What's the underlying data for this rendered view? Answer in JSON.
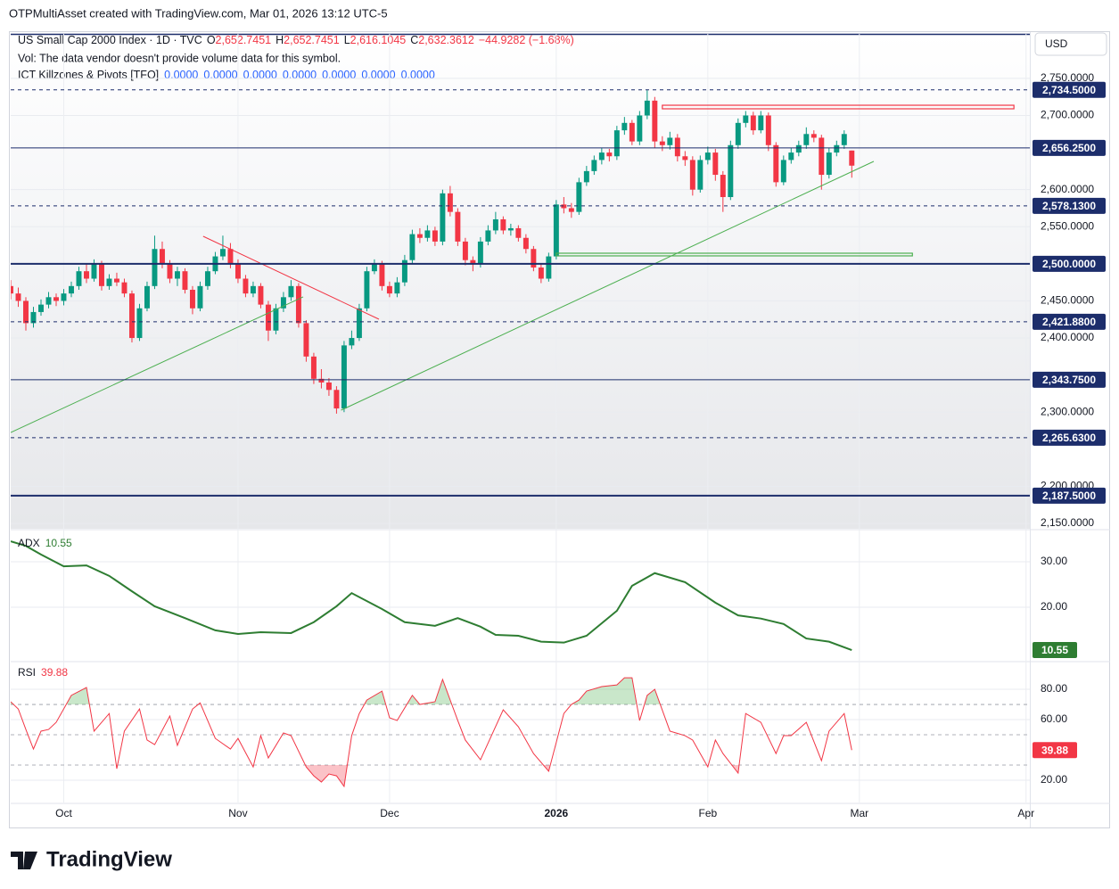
{
  "header": {
    "title": "OTPMultiAsset created with TradingView.com, Mar 01, 2026 13:12 UTC-5"
  },
  "footer": {
    "brand": "TradingView"
  },
  "chart_data": [
    {
      "type": "candlestick",
      "symbol": "US Small Cap 2000 Index · 1D · TVC",
      "ohlc_legend": [
        {
          "key": "O",
          "value": "2,652.7451"
        },
        {
          "key": "H",
          "value": "2,652.7451"
        },
        {
          "key": "L",
          "value": "2,616.1045"
        },
        {
          "key": "C",
          "value": "2,632.3612"
        }
      ],
      "change": "−44.9282 (−1.68%)",
      "notes": [
        "Vol: The data vendor doesn't provide volume data for this symbol.",
        "ICT Killzones & Pivots [TFO]"
      ],
      "indicator_values": [
        "0.0000",
        "0.0000",
        "0.0000",
        "0.0000",
        "0.0000",
        "0.0000",
        "0.0000"
      ],
      "currency": "USD",
      "up_color": "#089981",
      "down_color": "#f23645",
      "level_color": "#1c2d6b",
      "xlim": [
        0,
        134.5
      ],
      "xticks": [
        {
          "value": 7,
          "label": "Oct"
        },
        {
          "value": 30,
          "label": "Nov"
        },
        {
          "value": 50,
          "label": "Dec"
        },
        {
          "value": 72,
          "label": "2026"
        },
        {
          "value": 92,
          "label": "Feb"
        },
        {
          "value": 112,
          "label": "Mar"
        },
        {
          "value": 134,
          "label": "Apr"
        }
      ],
      "ylim": [
        2142.8,
        2810
      ],
      "yticks": [
        {
          "value": 2150,
          "label": "2,150.0000"
        },
        {
          "value": 2200,
          "label": "2,200.0000"
        },
        {
          "value": 2300,
          "label": "2,300.0000"
        },
        {
          "value": 2400,
          "label": "2,400.0000"
        },
        {
          "value": 2450,
          "label": "2,450.0000"
        },
        {
          "value": 2550,
          "label": "2,550.0000"
        },
        {
          "value": 2600,
          "label": "2,600.0000"
        },
        {
          "value": 2700,
          "label": "2,700.0000"
        },
        {
          "value": 2750,
          "label": "2,750.0000"
        }
      ],
      "grid": true,
      "levels": [
        {
          "value": 2734.5,
          "label": "2,734.5000",
          "style": "dashed"
        },
        {
          "value": 2656.25,
          "label": "2,656.2500",
          "style": "solid"
        },
        {
          "value": 2578.13,
          "label": "2,578.1300",
          "style": "dashed"
        },
        {
          "value": 2500,
          "label": "2,500.0000",
          "style": "bold"
        },
        {
          "value": 2421.88,
          "label": "2,421.8800",
          "style": "dashed"
        },
        {
          "value": 2343.75,
          "label": "2,343.7500",
          "style": "solid"
        },
        {
          "value": 2265.63,
          "label": "2,265.6300",
          "style": "dashed"
        },
        {
          "value": 2187.5,
          "label": "2,187.5000",
          "style": "bold"
        }
      ],
      "trend_lines": [
        {
          "color": "#4caf50",
          "x": [
            0,
            38.6
          ],
          "y": [
            2272.6,
            2455.4
          ]
        },
        {
          "color": "#4caf50",
          "x": [
            43.6,
            113.9
          ],
          "y": [
            2302.7,
            2638.1
          ]
        },
        {
          "color": "#f23645",
          "x": [
            25.4,
            48.6
          ],
          "y": [
            2537.1,
            2425.3
          ]
        }
      ],
      "zones": [
        {
          "color": "#f23645",
          "x": [
            86,
            132.4
          ],
          "y": [
            2709,
            2713.8
          ]
        },
        {
          "color": "#4caf50",
          "x": [
            72,
            119
          ],
          "y": [
            2510.7,
            2514.3
          ]
        }
      ],
      "ohlc": [
        [
          2470,
          2478,
          2452,
          2460
        ],
        [
          2460,
          2468,
          2442,
          2450
        ],
        [
          2450,
          2455,
          2410,
          2420
        ],
        [
          2420,
          2442,
          2414,
          2435
        ],
        [
          2435,
          2452,
          2430,
          2445
        ],
        [
          2445,
          2462,
          2440,
          2455
        ],
        [
          2455,
          2460,
          2443,
          2450
        ],
        [
          2450,
          2466,
          2444,
          2460
        ],
        [
          2460,
          2476,
          2455,
          2470
        ],
        [
          2470,
          2496,
          2465,
          2490
        ],
        [
          2490,
          2500,
          2474,
          2480
        ],
        [
          2480,
          2506,
          2476,
          2500
        ],
        [
          2500,
          2504,
          2464,
          2470
        ],
        [
          2470,
          2486,
          2465,
          2480
        ],
        [
          2480,
          2488,
          2470,
          2475
        ],
        [
          2475,
          2480,
          2455,
          2460
        ],
        [
          2460,
          2464,
          2394,
          2400
        ],
        [
          2400,
          2446,
          2396,
          2440
        ],
        [
          2440,
          2476,
          2436,
          2470
        ],
        [
          2470,
          2538,
          2466,
          2520
        ],
        [
          2520,
          2530,
          2494,
          2500
        ],
        [
          2500,
          2505,
          2474,
          2480
        ],
        [
          2480,
          2496,
          2470,
          2490
        ],
        [
          2490,
          2494,
          2460,
          2465
        ],
        [
          2465,
          2470,
          2432,
          2440
        ],
        [
          2440,
          2476,
          2436,
          2470
        ],
        [
          2470,
          2496,
          2465,
          2490
        ],
        [
          2490,
          2516,
          2486,
          2510
        ],
        [
          2510,
          2538,
          2505,
          2520
        ],
        [
          2520,
          2528,
          2494,
          2500
        ],
        [
          2500,
          2506,
          2474,
          2480
        ],
        [
          2480,
          2485,
          2455,
          2460
        ],
        [
          2460,
          2476,
          2455,
          2470
        ],
        [
          2470,
          2474,
          2440,
          2445
        ],
        [
          2445,
          2450,
          2396,
          2410
        ],
        [
          2410,
          2446,
          2405,
          2440
        ],
        [
          2440,
          2462,
          2435,
          2455
        ],
        [
          2455,
          2478,
          2450,
          2470
        ],
        [
          2470,
          2474,
          2414,
          2420
        ],
        [
          2420,
          2424,
          2368,
          2375
        ],
        [
          2375,
          2380,
          2338,
          2345
        ],
        [
          2345,
          2358,
          2332,
          2340
        ],
        [
          2340,
          2346,
          2322,
          2330
        ],
        [
          2330,
          2335,
          2298,
          2305
        ],
        [
          2305,
          2396,
          2300,
          2390
        ],
        [
          2390,
          2410,
          2385,
          2400
        ],
        [
          2400,
          2446,
          2396,
          2440
        ],
        [
          2440,
          2496,
          2436,
          2490
        ],
        [
          2490,
          2506,
          2486,
          2500
        ],
        [
          2500,
          2504,
          2464,
          2470
        ],
        [
          2470,
          2476,
          2455,
          2460
        ],
        [
          2460,
          2482,
          2455,
          2475
        ],
        [
          2475,
          2512,
          2470,
          2505
        ],
        [
          2505,
          2546,
          2500,
          2540
        ],
        [
          2540,
          2548,
          2528,
          2535
        ],
        [
          2535,
          2552,
          2530,
          2545
        ],
        [
          2545,
          2550,
          2524,
          2530
        ],
        [
          2530,
          2600,
          2525,
          2595
        ],
        [
          2595,
          2605,
          2564,
          2570
        ],
        [
          2570,
          2575,
          2524,
          2530
        ],
        [
          2530,
          2535,
          2498,
          2505
        ],
        [
          2505,
          2510,
          2490,
          2500
        ],
        [
          2500,
          2536,
          2495,
          2530
        ],
        [
          2530,
          2552,
          2525,
          2545
        ],
        [
          2545,
          2570,
          2540,
          2560
        ],
        [
          2560,
          2564,
          2540,
          2545
        ],
        [
          2545,
          2554,
          2538,
          2548
        ],
        [
          2548,
          2552,
          2530,
          2535
        ],
        [
          2535,
          2540,
          2514,
          2520
        ],
        [
          2520,
          2524,
          2490,
          2495
        ],
        [
          2495,
          2500,
          2474,
          2480
        ],
        [
          2480,
          2515,
          2476,
          2510
        ],
        [
          2510,
          2586,
          2506,
          2580
        ],
        [
          2580,
          2590,
          2568,
          2575
        ],
        [
          2575,
          2582,
          2562,
          2570
        ],
        [
          2570,
          2616,
          2566,
          2610
        ],
        [
          2610,
          2632,
          2605,
          2625
        ],
        [
          2625,
          2646,
          2620,
          2640
        ],
        [
          2640,
          2656,
          2634,
          2650
        ],
        [
          2650,
          2655,
          2638,
          2645
        ],
        [
          2645,
          2686,
          2640,
          2680
        ],
        [
          2680,
          2698,
          2674,
          2690
        ],
        [
          2690,
          2694,
          2660,
          2665
        ],
        [
          2665,
          2706,
          2660,
          2700
        ],
        [
          2700,
          2734,
          2695,
          2720
        ],
        [
          2720,
          2725,
          2656,
          2665
        ],
        [
          2665,
          2672,
          2652,
          2660
        ],
        [
          2660,
          2678,
          2654,
          2670
        ],
        [
          2670,
          2675,
          2638,
          2645
        ],
        [
          2645,
          2652,
          2632,
          2640
        ],
        [
          2640,
          2645,
          2592,
          2600
        ],
        [
          2600,
          2646,
          2596,
          2640
        ],
        [
          2640,
          2658,
          2634,
          2650
        ],
        [
          2650,
          2655,
          2612,
          2620
        ],
        [
          2620,
          2625,
          2570,
          2590
        ],
        [
          2590,
          2666,
          2586,
          2660
        ],
        [
          2660,
          2696,
          2655,
          2690
        ],
        [
          2690,
          2706,
          2684,
          2700
        ],
        [
          2700,
          2705,
          2674,
          2680
        ],
        [
          2680,
          2706,
          2676,
          2700
        ],
        [
          2700,
          2704,
          2652,
          2660
        ],
        [
          2660,
          2664,
          2604,
          2610
        ],
        [
          2610,
          2646,
          2606,
          2640
        ],
        [
          2640,
          2656,
          2635,
          2650
        ],
        [
          2650,
          2666,
          2645,
          2660
        ],
        [
          2660,
          2684,
          2655,
          2675
        ],
        [
          2675,
          2680,
          2664,
          2670
        ],
        [
          2670,
          2674,
          2600,
          2620
        ],
        [
          2620,
          2656,
          2615,
          2650
        ],
        [
          2650,
          2666,
          2645,
          2660
        ],
        [
          2660,
          2680,
          2655,
          2675
        ],
        [
          2652.7451,
          2652.7451,
          2616.1045,
          2632.3612
        ]
      ]
    },
    {
      "type": "line",
      "xlim": [
        0,
        134.5
      ],
      "ylim": [
        8.4,
        35.9
      ],
      "yticks": [
        {
          "value": 20,
          "label": "20.00"
        },
        {
          "value": 30,
          "label": "30.00"
        }
      ],
      "series": [
        {
          "name": "ADX",
          "color": "#2e7d32",
          "x": [
            0,
            2,
            4,
            7,
            10,
            13,
            16,
            19,
            23,
            27,
            30,
            33,
            37,
            40,
            43,
            45,
            49,
            52,
            56,
            59,
            62,
            64,
            67,
            70,
            73,
            76,
            80,
            82,
            85,
            89,
            93,
            96,
            99,
            102,
            105,
            108,
            111
          ],
          "values": [
            34.5,
            33.5,
            31.6,
            29,
            29.2,
            26.9,
            23.5,
            20.2,
            17.6,
            14.9,
            14.1,
            14.5,
            14.3,
            16.7,
            20.2,
            23.1,
            19.6,
            16.7,
            15.9,
            17.6,
            15.7,
            13.9,
            13.7,
            12.4,
            12.2,
            13.7,
            19.2,
            24.7,
            27.5,
            25.5,
            21,
            18.2,
            17.5,
            16.3,
            13.1,
            12.4,
            10.55
          ]
        }
      ]
    },
    {
      "type": "line",
      "xlim": [
        0,
        134.5
      ],
      "ylim": [
        5.3,
        96.5
      ],
      "yticks": [
        {
          "value": 20,
          "label": "20.00"
        },
        {
          "value": 60,
          "label": "60.00"
        },
        {
          "value": 80,
          "label": "80.00"
        }
      ],
      "bands": [
        70,
        50,
        30
      ],
      "fill_above": {
        "level": 70,
        "color": "#4caf50"
      },
      "fill_below": {
        "level": 30,
        "color": "#f23645"
      },
      "series": [
        {
          "name": "RSI",
          "color": "#f23645",
          "x": [
            0,
            1,
            2,
            3,
            4,
            5,
            6,
            8,
            10,
            11,
            13,
            14,
            15,
            17,
            18,
            19,
            21,
            22,
            24,
            25,
            27,
            29,
            30,
            32,
            33,
            34,
            36,
            37,
            39,
            40,
            41,
            42,
            43,
            44,
            45,
            46,
            47,
            49,
            50,
            51,
            53,
            54,
            56,
            57,
            59,
            60,
            62,
            65,
            67,
            69,
            71,
            73,
            74,
            75,
            76,
            78,
            80,
            81,
            82,
            83,
            84,
            85,
            87,
            89,
            90,
            92,
            93,
            94,
            96,
            97,
            99,
            101,
            102,
            103,
            105,
            107,
            108,
            110,
            111
          ],
          "values": [
            71.8,
            67,
            53.5,
            40.6,
            52.4,
            53.5,
            58.2,
            76,
            81.2,
            52.4,
            64,
            27.6,
            52.4,
            67,
            46.5,
            43.5,
            62.4,
            43,
            67,
            71,
            47.6,
            40.6,
            47.6,
            28.8,
            49.4,
            34.7,
            51.2,
            49.4,
            28.8,
            22.9,
            18.8,
            24.1,
            22.9,
            15.9,
            49.4,
            64,
            72.9,
            78.8,
            61.2,
            59.4,
            76,
            70,
            71.8,
            86.5,
            59.4,
            46.5,
            33.5,
            66.5,
            55.3,
            37.6,
            25.9,
            64,
            70,
            72.9,
            78.8,
            81.8,
            82.9,
            87.6,
            87.6,
            59.4,
            76,
            80,
            52.4,
            49.4,
            46.5,
            28.8,
            46.5,
            37.6,
            24.7,
            64,
            58.2,
            37.6,
            49.4,
            49.4,
            58.2,
            32.9,
            52.4,
            64,
            39.88
          ]
        }
      ]
    }
  ]
}
